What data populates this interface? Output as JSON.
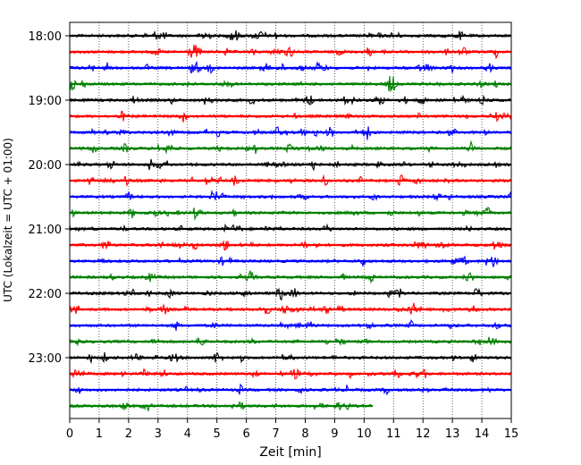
{
  "chart_data": {
    "type": "line",
    "title": "",
    "xlabel": "Zeit  [min]",
    "ylabel": "UTC (Lokalzeit = UTC + 01:00)",
    "xlim": [
      0,
      15
    ],
    "x_ticks": [
      "0",
      "1",
      "2",
      "3",
      "4",
      "5",
      "6",
      "7",
      "8",
      "9",
      "10",
      "11",
      "12",
      "13",
      "14",
      "15"
    ],
    "y_ticks": [
      "18:00",
      "19:00",
      "20:00",
      "21:00",
      "22:00",
      "23:00"
    ],
    "grid": "vertical dotted",
    "legend": "none",
    "color_cycle": [
      "#000000",
      "#ff0000",
      "#0000ff",
      "#008000"
    ],
    "traces": [
      {
        "start": "18:00",
        "end_min": 15
      },
      {
        "start": "18:15",
        "end_min": 15
      },
      {
        "start": "18:30",
        "end_min": 15
      },
      {
        "start": "18:45",
        "end_min": 15
      },
      {
        "start": "19:00",
        "end_min": 15
      },
      {
        "start": "19:15",
        "end_min": 15
      },
      {
        "start": "19:30",
        "end_min": 15
      },
      {
        "start": "19:45",
        "end_min": 15
      },
      {
        "start": "20:00",
        "end_min": 15
      },
      {
        "start": "20:15",
        "end_min": 15
      },
      {
        "start": "20:30",
        "end_min": 15
      },
      {
        "start": "20:45",
        "end_min": 15
      },
      {
        "start": "21:00",
        "end_min": 15
      },
      {
        "start": "21:15",
        "end_min": 15
      },
      {
        "start": "21:30",
        "end_min": 15
      },
      {
        "start": "21:45",
        "end_min": 15
      },
      {
        "start": "22:00",
        "end_min": 15
      },
      {
        "start": "22:15",
        "end_min": 15
      },
      {
        "start": "22:30",
        "end_min": 15
      },
      {
        "start": "22:45",
        "end_min": 15
      },
      {
        "start": "23:00",
        "end_min": 15
      },
      {
        "start": "23:15",
        "end_min": 15
      },
      {
        "start": "23:30",
        "end_min": 15
      },
      {
        "start": "23:45",
        "end_min": 10.3
      }
    ]
  }
}
